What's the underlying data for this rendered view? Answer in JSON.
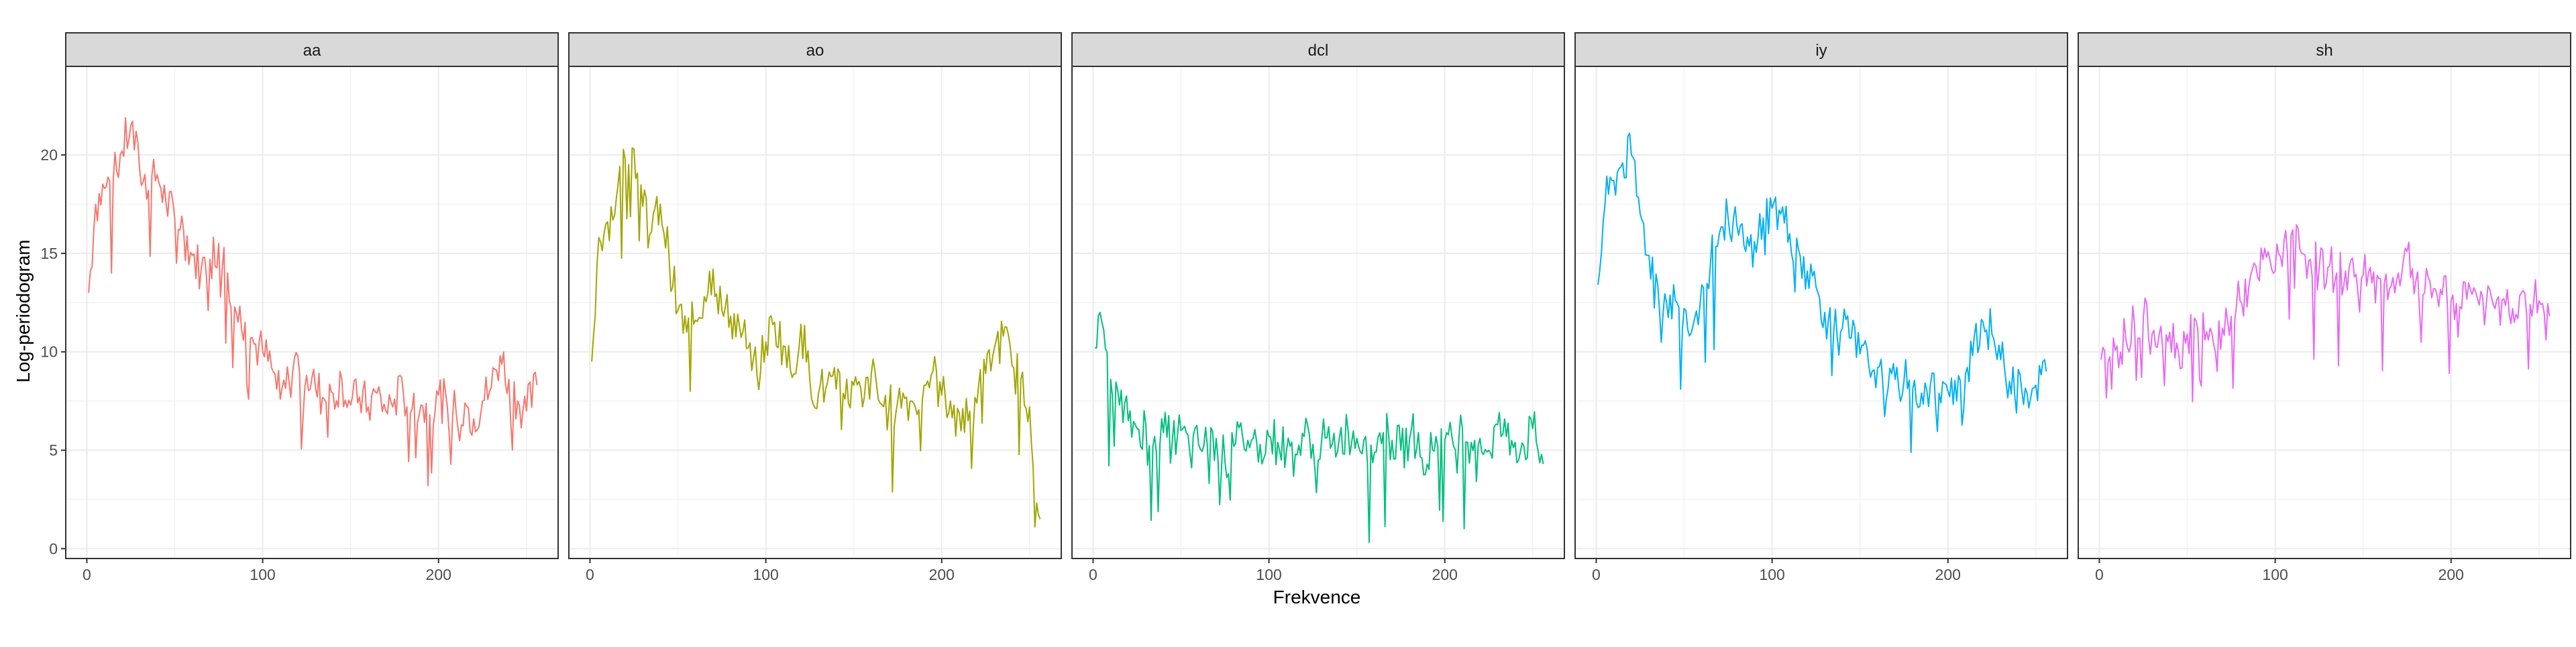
{
  "chart_data": {
    "type": "line",
    "xlabel": "Frekvence",
    "ylabel": "Log-periodogram",
    "xlim": [
      -12,
      268
    ],
    "ylim": [
      -0.5,
      24.5
    ],
    "xticks": [
      0,
      100,
      200
    ],
    "yticks": [
      0,
      5,
      10,
      15,
      20
    ],
    "x_tick_labels": [
      "0",
      "100",
      "200"
    ],
    "y_tick_labels": [
      "0",
      "5",
      "10",
      "15",
      "20"
    ],
    "grid": true,
    "legend": "none",
    "x": [
      1,
      5,
      10,
      15,
      20,
      25,
      30,
      35,
      40,
      45,
      50,
      55,
      60,
      65,
      70,
      75,
      80,
      85,
      90,
      95,
      100,
      105,
      110,
      115,
      120,
      125,
      130,
      135,
      140,
      145,
      150,
      155,
      160,
      165,
      170,
      175,
      180,
      185,
      190,
      195,
      200,
      205,
      210,
      215,
      220,
      225,
      230,
      235,
      240,
      245,
      250,
      256
    ],
    "panels": [
      {
        "name": "aa",
        "color": "#F8766D",
        "values": [
          13.0,
          17.5,
          18.3,
          18.7,
          20.2,
          21.5,
          19.3,
          18.2,
          19.0,
          17.6,
          16.8,
          16.2,
          14.9,
          14.2,
          14.7,
          15.5,
          14.0,
          12.0,
          11.5,
          10.4,
          10.0,
          9.2,
          7.6,
          8.5,
          9.8,
          8.8,
          8.2,
          7.6,
          7.9,
          8.6,
          7.3,
          7.7,
          7.2,
          7.9,
          7.0,
          7.6,
          7.9,
          7.1,
          7.3,
          6.8,
          7.8,
          7.2,
          6.9,
          7.4,
          6.6,
          7.5,
          8.2,
          9.8,
          8.6,
          7.5,
          7.0,
          8.3
        ]
      },
      {
        "name": "ao",
        "color": "#A3A500",
        "values": [
          9.5,
          15.8,
          16.6,
          17.8,
          19.8,
          20.3,
          17.4,
          16.1,
          17.5,
          14.8,
          12.1,
          11.0,
          11.6,
          12.8,
          14.2,
          12.1,
          11.8,
          11.3,
          10.2,
          8.8,
          10.5,
          11.5,
          10.3,
          8.7,
          11.4,
          8.6,
          7.9,
          8.4,
          8.1,
          7.6,
          8.3,
          7.2,
          8.9,
          7.4,
          7.1,
          7.5,
          7.7,
          7.2,
          8.3,
          9.0,
          7.8,
          7.5,
          6.9,
          6.5,
          7.4,
          8.9,
          10.2,
          10.8,
          9.3,
          8.6,
          7.2,
          1.5
        ]
      },
      {
        "name": "dcl",
        "color": "#00BF7D",
        "values": [
          10.2,
          11.5,
          8.6,
          7.3,
          6.5,
          6.1,
          6.3,
          5.7,
          5.9,
          5.4,
          6.0,
          4.9,
          5.3,
          5.2,
          5.6,
          4.4,
          5.2,
          5.7,
          5.5,
          5.3,
          5.7,
          5.4,
          5.0,
          4.8,
          5.7,
          5.3,
          5.5,
          5.1,
          5.6,
          6.0,
          5.6,
          5.7,
          4.9,
          5.9,
          5.5,
          5.0,
          5.6,
          5.9,
          4.3,
          5.7,
          5.5,
          5.2,
          6.1,
          5.4,
          5.6,
          5.0,
          6.3,
          5.7,
          5.4,
          5.2,
          6.1,
          4.3
        ]
      },
      {
        "name": "iy",
        "color": "#00B0F6",
        "values": [
          13.4,
          17.5,
          18.7,
          19.6,
          20.0,
          17.0,
          14.9,
          13.4,
          12.5,
          12.6,
          12.2,
          11.3,
          13.4,
          14.5,
          16.0,
          16.8,
          16.4,
          15.1,
          15.6,
          16.8,
          17.3,
          17.0,
          16.0,
          15.2,
          14.1,
          13.3,
          12.0,
          10.9,
          11.2,
          10.7,
          9.9,
          9.3,
          9.2,
          7.6,
          8.6,
          8.5,
          8.1,
          7.9,
          8.3,
          7.9,
          8.0,
          7.5,
          8.9,
          10.8,
          11.5,
          10.9,
          9.6,
          8.5,
          9.1,
          7.9,
          8.3,
          9.0
        ]
      },
      {
        "name": "sh",
        "color": "#E76BF3",
        "values": [
          9.6,
          9.5,
          10.3,
          10.7,
          11.4,
          11.7,
          10.9,
          11.3,
          11.0,
          10.0,
          10.9,
          11.6,
          10.6,
          10.4,
          11.2,
          11.8,
          12.6,
          13.3,
          13.8,
          14.8,
          14.1,
          15.6,
          16.2,
          15.0,
          14.7,
          14.2,
          14.3,
          14.0,
          14.1,
          13.8,
          13.9,
          13.5,
          13.7,
          13.2,
          14.0,
          15.1,
          13.6,
          13.0,
          13.2,
          12.9,
          12.6,
          12.3,
          13.5,
          12.7,
          12.4,
          12.2,
          12.7,
          12.2,
          13.0,
          12.4,
          12.6,
          11.8
        ]
      }
    ]
  }
}
